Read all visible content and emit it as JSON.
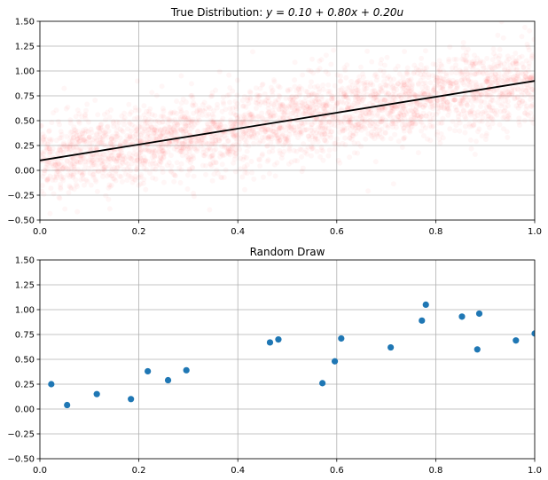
{
  "chart_data": [
    {
      "type": "scatter",
      "title": "True Distribution: y = 0.10 + 0.80x + 0.20u",
      "title_parts": {
        "prefix": "True Distribution: ",
        "math": "y = 0.10 + 0.80x + 0.20u"
      },
      "xlabel": "",
      "ylabel": "",
      "xlim": [
        0.0,
        1.0
      ],
      "ylim": [
        -0.5,
        1.5
      ],
      "x_ticks": [
        "0.0",
        "0.2",
        "0.4",
        "0.6",
        "0.8",
        "1.0"
      ],
      "y_ticks": [
        "−0.50",
        "−0.25",
        "0.00",
        "0.25",
        "0.50",
        "0.75",
        "1.00",
        "1.25",
        "1.50"
      ],
      "grid": true,
      "point_cloud": {
        "model": {
          "intercept": 0.1,
          "slope": 0.8,
          "noise_sd": 0.2
        },
        "color": "#ff0000",
        "alpha": 0.02,
        "description": "dense semi-transparent sample of the true distribution"
      },
      "line": {
        "x": [
          0.0,
          1.0
        ],
        "y": [
          0.1,
          0.9
        ],
        "color": "#000000"
      }
    },
    {
      "type": "scatter",
      "title": "Random Draw",
      "xlabel": "",
      "ylabel": "",
      "xlim": [
        0.0,
        1.0
      ],
      "ylim": [
        -0.5,
        1.5
      ],
      "x_ticks": [
        "0.0",
        "0.2",
        "0.4",
        "0.6",
        "0.8",
        "1.0"
      ],
      "y_ticks": [
        "−0.50",
        "−0.25",
        "0.00",
        "0.25",
        "0.50",
        "0.75",
        "1.00",
        "1.25",
        "1.50"
      ],
      "grid": true,
      "color": "#1f77b4",
      "points": [
        {
          "x": 0.023,
          "y": 0.25
        },
        {
          "x": 0.055,
          "y": 0.04
        },
        {
          "x": 0.115,
          "y": 0.15
        },
        {
          "x": 0.184,
          "y": 0.1
        },
        {
          "x": 0.218,
          "y": 0.38
        },
        {
          "x": 0.259,
          "y": 0.29
        },
        {
          "x": 0.296,
          "y": 0.39
        },
        {
          "x": 0.465,
          "y": 0.67
        },
        {
          "x": 0.482,
          "y": 0.7
        },
        {
          "x": 0.571,
          "y": 0.26
        },
        {
          "x": 0.596,
          "y": 0.48
        },
        {
          "x": 0.609,
          "y": 0.71
        },
        {
          "x": 0.709,
          "y": 0.62
        },
        {
          "x": 0.772,
          "y": 0.89
        },
        {
          "x": 0.78,
          "y": 1.05
        },
        {
          "x": 0.853,
          "y": 0.93
        },
        {
          "x": 0.884,
          "y": 0.6
        },
        {
          "x": 0.888,
          "y": 0.96
        },
        {
          "x": 0.962,
          "y": 0.69
        },
        {
          "x": 1.0,
          "y": 0.76
        }
      ]
    }
  ]
}
